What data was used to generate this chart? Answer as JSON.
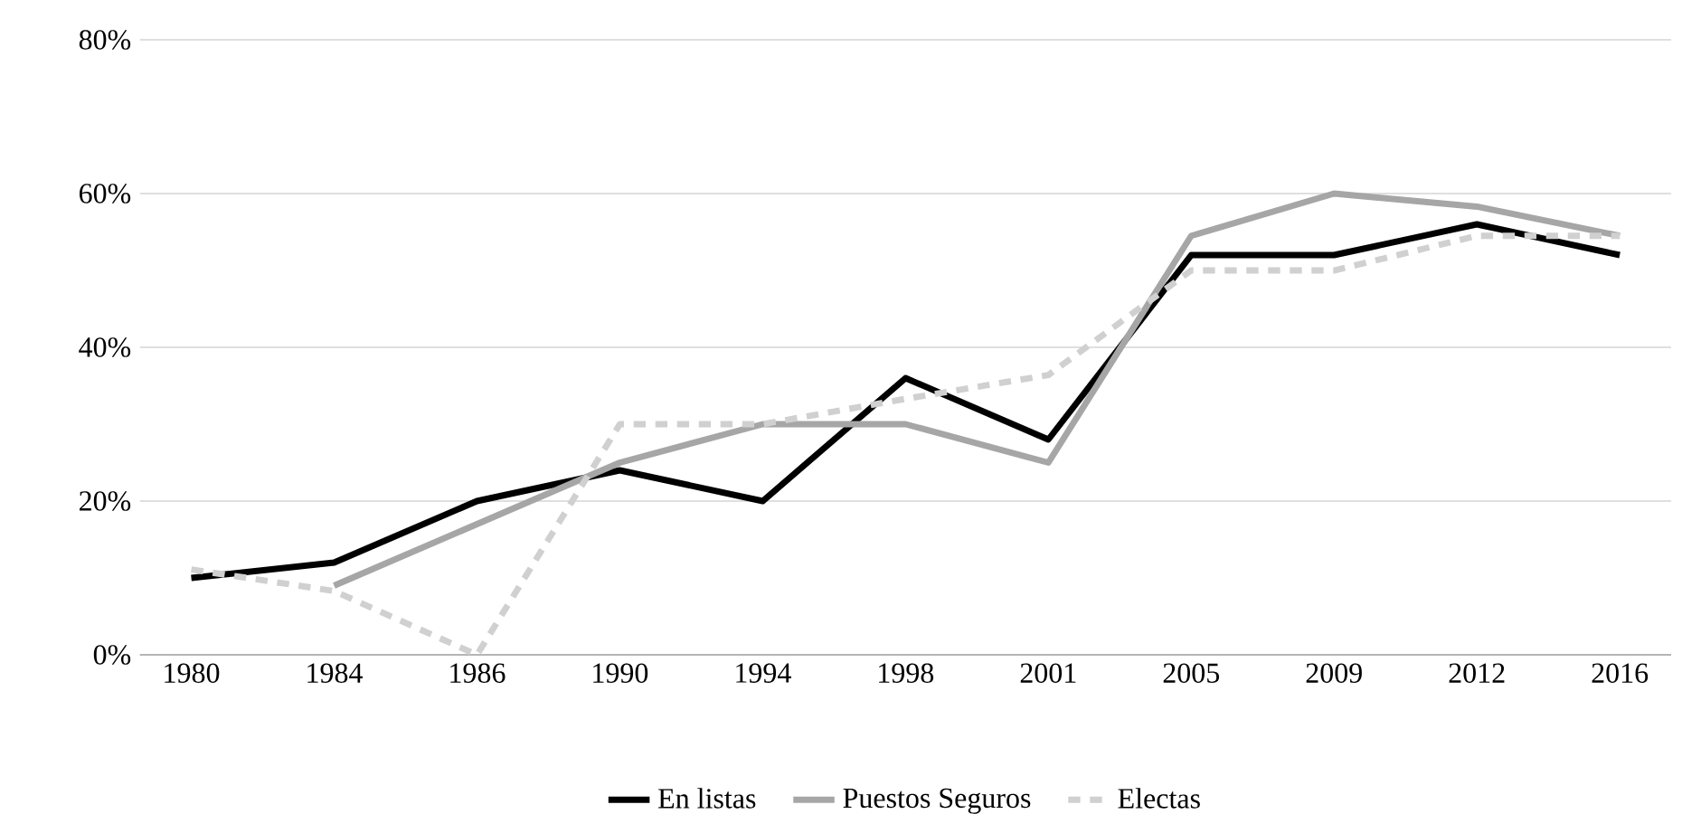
{
  "chart_data": {
    "type": "line",
    "categories": [
      "1980",
      "1984",
      "1986",
      "1990",
      "1994",
      "1998",
      "2001",
      "2005",
      "2009",
      "2012",
      "2016"
    ],
    "series": [
      {
        "name": "En listas",
        "color": "#000000",
        "line_style": "solid",
        "values": [
          10,
          12,
          20,
          24,
          20,
          36,
          28,
          52,
          52,
          56,
          52
        ]
      },
      {
        "name": "Puestos Seguros",
        "color": "#a6a6a6",
        "line_style": "solid",
        "values": [
          null,
          9,
          17,
          25,
          30,
          30,
          25,
          54.5,
          60,
          58.3,
          54.5
        ]
      },
      {
        "name": "Electas",
        "color": "#d0d0d0",
        "line_style": "dashed",
        "values": [
          11.1,
          8.3,
          0,
          30,
          30,
          33.3,
          36.4,
          50,
          50,
          54.5,
          54.5
        ]
      }
    ],
    "ylim": [
      0,
      80
    ],
    "yticks": [
      {
        "value": 0,
        "label": "0%"
      },
      {
        "value": 20,
        "label": "20%"
      },
      {
        "value": 40,
        "label": "40%"
      },
      {
        "value": 60,
        "label": "60%"
      },
      {
        "value": 80,
        "label": "80%"
      }
    ],
    "grid": "y",
    "legend": "bottom",
    "marker": "none"
  }
}
